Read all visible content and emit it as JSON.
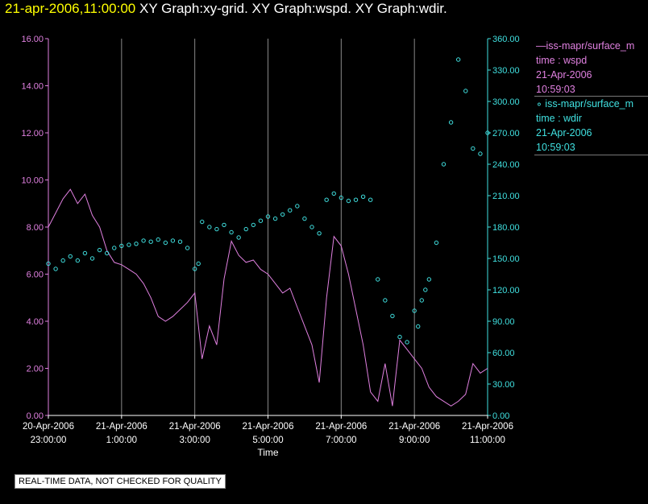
{
  "header": {
    "timestamp": "21-apr-2006,11:00:00",
    "title": "XY Graph:xy-grid.  XY Graph:wspd.  XY Graph:wdir."
  },
  "legend": {
    "wspd": {
      "label": "—iss-mapr/surface_m",
      "line2": "time : wspd",
      "line3": "21-Apr-2006",
      "line4": "10:59:03",
      "color": "#e080e0"
    },
    "wdir": {
      "label": "∘ iss-mapr/surface_m",
      "line2": "time : wdir",
      "line3": "21-Apr-2006",
      "line4": "10:59:03",
      "color": "#40e0e0"
    }
  },
  "footer_note": "REAL-TIME DATA, NOT CHECKED FOR QUALITY",
  "chart_data": {
    "type": "line",
    "xlabel": "Time",
    "x_ticks": [
      {
        "date": "20-Apr-2006",
        "time": "23:00:00"
      },
      {
        "date": "21-Apr-2006",
        "time": "1:00:00"
      },
      {
        "date": "21-Apr-2006",
        "time": "3:00:00"
      },
      {
        "date": "21-Apr-2006",
        "time": "5:00:00"
      },
      {
        "date": "21-Apr-2006",
        "time": "7:00:00"
      },
      {
        "date": "21-Apr-2006",
        "time": "9:00:00"
      },
      {
        "date": "21-Apr-2006",
        "time": "11:00:00"
      }
    ],
    "xlim_hours": [
      23,
      35
    ],
    "left_axis": {
      "ylim": [
        0,
        16
      ],
      "ticks": [
        "0.00",
        "2.00",
        "4.00",
        "6.00",
        "8.00",
        "10.00",
        "12.00",
        "14.00",
        "16.00"
      ],
      "color": "#e080e0"
    },
    "right_axis": {
      "ylim": [
        0,
        360
      ],
      "ticks": [
        "0.00",
        "30.00",
        "60.00",
        "90.00",
        "120.00",
        "150.00",
        "180.00",
        "210.00",
        "240.00",
        "270.00",
        "300.00",
        "330.00",
        "360.00"
      ],
      "color": "#40e0e0"
    },
    "grid": "vertical",
    "series": [
      {
        "key": "wspd",
        "style": "line",
        "axis": "left",
        "color": "#e080e0",
        "x_hours": [
          23.0,
          23.2,
          23.4,
          23.6,
          23.8,
          24.0,
          24.2,
          24.4,
          24.6,
          24.8,
          25.0,
          25.2,
          25.4,
          25.6,
          25.8,
          26.0,
          26.2,
          26.4,
          26.6,
          26.8,
          27.0,
          27.2,
          27.4,
          27.6,
          27.8,
          28.0,
          28.2,
          28.4,
          28.6,
          28.8,
          29.0,
          29.2,
          29.4,
          29.6,
          29.8,
          30.0,
          30.2,
          30.4,
          30.6,
          30.8,
          31.0,
          31.2,
          31.4,
          31.6,
          31.8,
          32.0,
          32.2,
          32.4,
          32.6,
          32.8,
          33.0,
          33.2,
          33.4,
          33.6,
          33.8,
          34.0,
          34.2,
          34.4,
          34.6,
          34.8,
          35.0
        ],
        "values": [
          8.0,
          8.6,
          9.2,
          9.6,
          9.0,
          9.4,
          8.5,
          8.0,
          7.0,
          6.5,
          6.4,
          6.2,
          6.0,
          5.6,
          5.0,
          4.2,
          4.0,
          4.2,
          4.5,
          4.8,
          5.2,
          2.4,
          3.8,
          3.0,
          5.8,
          7.4,
          6.8,
          6.5,
          6.6,
          6.2,
          6.0,
          5.6,
          5.2,
          5.4,
          4.6,
          3.8,
          3.0,
          1.4,
          5.0,
          7.6,
          7.2,
          6.0,
          4.5,
          3.0,
          1.0,
          0.6,
          2.2,
          0.4,
          3.2,
          2.8,
          2.4,
          2.0,
          1.2,
          0.8,
          0.6,
          0.4,
          0.6,
          0.9,
          2.2,
          1.8,
          2.0
        ]
      },
      {
        "key": "wdir",
        "style": "markers",
        "axis": "right",
        "color": "#40e0e0",
        "x_hours": [
          23.0,
          23.2,
          23.4,
          23.6,
          23.8,
          24.0,
          24.2,
          24.4,
          24.6,
          24.8,
          25.0,
          25.2,
          25.4,
          25.6,
          25.8,
          26.0,
          26.2,
          26.4,
          26.6,
          26.8,
          27.0,
          27.1,
          27.2,
          27.4,
          27.6,
          27.8,
          28.0,
          28.2,
          28.4,
          28.6,
          28.8,
          29.0,
          29.2,
          29.4,
          29.6,
          29.8,
          30.0,
          30.2,
          30.4,
          30.6,
          30.8,
          31.0,
          31.2,
          31.4,
          31.6,
          31.8,
          32.0,
          32.2,
          32.4,
          32.6,
          32.8,
          33.0,
          33.1,
          33.2,
          33.3,
          33.4,
          33.6,
          33.8,
          34.0,
          34.2,
          34.4,
          34.6,
          34.8,
          35.0
        ],
        "values": [
          145,
          140,
          148,
          152,
          148,
          155,
          150,
          158,
          155,
          160,
          162,
          163,
          164,
          167,
          166,
          168,
          165,
          167,
          166,
          160,
          140,
          145,
          185,
          180,
          178,
          182,
          175,
          170,
          178,
          182,
          186,
          190,
          188,
          192,
          196,
          200,
          188,
          180,
          174,
          206,
          212,
          208,
          205,
          206,
          209,
          206,
          130,
          110,
          95,
          75,
          70,
          100,
          85,
          110,
          120,
          130,
          165,
          240,
          280,
          340,
          310,
          255,
          250,
          270
        ]
      }
    ]
  }
}
